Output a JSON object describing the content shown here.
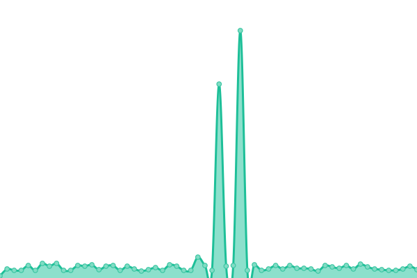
{
  "chart_data": {
    "type": "area",
    "title": "",
    "xlabel": "",
    "ylabel": "",
    "x": [
      0,
      1,
      2,
      3,
      4,
      5,
      6,
      7,
      8,
      9,
      10,
      11,
      12,
      13,
      14,
      15,
      16,
      17,
      18,
      19,
      20,
      21,
      22,
      23,
      24,
      25,
      26,
      27,
      28,
      29,
      30,
      31,
      32,
      33,
      34,
      35,
      36,
      37,
      38,
      39,
      40,
      41,
      42,
      43,
      44,
      45,
      46,
      47,
      48,
      49,
      50,
      51,
      52,
      53,
      54,
      55,
      56,
      57,
      58,
      59
    ],
    "series": [
      {
        "values": [
          3,
          13,
          11,
          11,
          18,
          11,
          21,
          17,
          21,
          11,
          11,
          18,
          17,
          19,
          12,
          17,
          18,
          11,
          17,
          13,
          10,
          12,
          15,
          11,
          19,
          17,
          11,
          11,
          30,
          18,
          11,
          279,
          17,
          18,
          356,
          11,
          19,
          11,
          13,
          18,
          13,
          18,
          14,
          14,
          13,
          10,
          18,
          16,
          14,
          18,
          13,
          20,
          16,
          13,
          12,
          11,
          11,
          13,
          17,
          12
        ]
      }
    ],
    "ylim": [
      0,
      400
    ],
    "xlim": [
      0,
      59
    ],
    "axes_visible": false,
    "grid": false,
    "legend": "none",
    "markers": true,
    "colors": {
      "line": "#1dbf98",
      "fill": "#8ce0cc",
      "marker_fill": "#80dcc4",
      "marker_stroke": "#3cc6a3"
    }
  }
}
